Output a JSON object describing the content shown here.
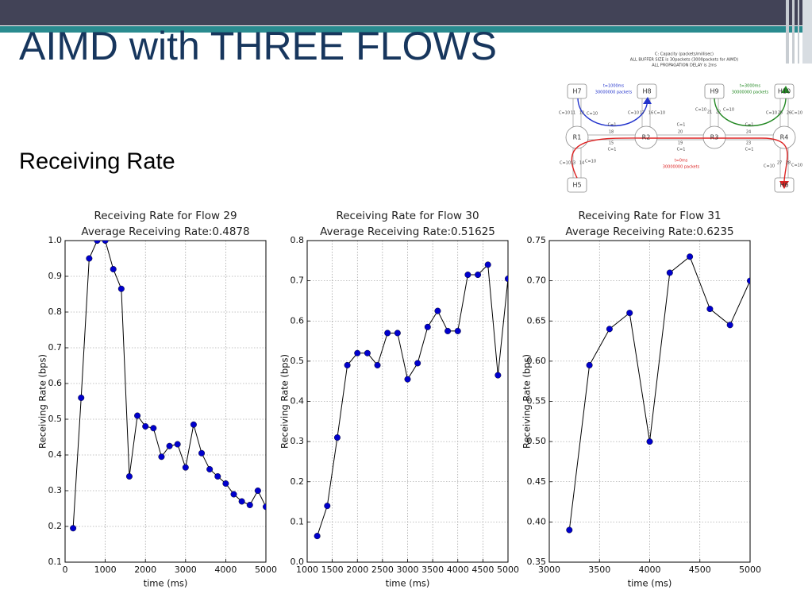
{
  "title": "AIMD with THREE FLOWS",
  "subtitle": "Receiving Rate",
  "diagram": {
    "header": [
      "C: Capacity (packets/millisec)",
      "ALL BUFFER SIZE is 30packets (3000packets for AIMD)",
      "ALL PROPAGATION DELAY is 2ms"
    ],
    "nodes": [
      "H7",
      "H8",
      "H9",
      "H10",
      "R1",
      "R2",
      "R3",
      "R4",
      "H5",
      "H6"
    ],
    "flows": [
      "t=1000ms",
      "30000000 packets",
      "t=3000ms",
      "30000000 packets",
      "t=0ms",
      "30000000 packets"
    ],
    "links": [
      "C=10",
      "11",
      "12",
      "C=10",
      "C=10",
      "17",
      "16",
      "C=10",
      "C=10",
      "21",
      "22",
      "C=10",
      "C=10",
      "25",
      "26",
      "C=10",
      "C=1",
      "18",
      "15",
      "C=1",
      "C=1",
      "20",
      "19",
      "C=1",
      "C=1",
      "24",
      "23",
      "C=1",
      "C=10",
      "13",
      "14",
      "C=10",
      "C=10",
      "27",
      "28",
      "C=10"
    ]
  },
  "chart_data": [
    {
      "type": "line",
      "title": "Receiving Rate for Flow 29",
      "subtitle": "Average Receiving Rate:0.4878",
      "x_label": "time (ms)",
      "y_label": "Receiving Rate (bps)",
      "x": [
        200,
        400,
        600,
        800,
        1000,
        1200,
        1400,
        1600,
        1800,
        2000,
        2200,
        2400,
        2600,
        2800,
        3000,
        3200,
        3400,
        3600,
        3800,
        4000,
        4200,
        4400,
        4600,
        4800,
        5000
      ],
      "values": [
        0.195,
        0.56,
        0.95,
        1.0,
        1.0,
        0.92,
        0.865,
        0.34,
        0.51,
        0.48,
        0.475,
        0.395,
        0.425,
        0.43,
        0.365,
        0.485,
        0.405,
        0.36,
        0.34,
        0.32,
        0.29,
        0.27,
        0.26,
        0.3,
        0.255
      ],
      "color": "#0000cc",
      "line_color": "#000000",
      "grid": true,
      "xlim": [
        0,
        5000
      ],
      "xticks": [
        0,
        1000,
        2000,
        3000,
        4000,
        5000
      ],
      "ylim": [
        0.1,
        1.0
      ],
      "yticks": [
        0.1,
        0.2,
        0.3,
        0.4,
        0.5,
        0.6,
        0.7,
        0.8,
        0.9,
        {
          "value": 1.0,
          "label": "1.0"
        }
      ]
    },
    {
      "type": "line",
      "title": "Receiving Rate for Flow 30",
      "subtitle": "Average Receiving Rate:0.51625",
      "x_label": "time (ms)",
      "y_label": "Receiving Rate (bps)",
      "x": [
        1200,
        1400,
        1600,
        1800,
        2000,
        2200,
        2400,
        2600,
        2800,
        3000,
        3200,
        3400,
        3600,
        3800,
        4000,
        4200,
        4400,
        4600,
        4800,
        5000
      ],
      "values": [
        0.065,
        0.14,
        0.31,
        0.49,
        0.52,
        0.52,
        0.49,
        0.57,
        0.57,
        0.455,
        0.495,
        0.585,
        0.625,
        0.575,
        0.575,
        0.715,
        0.715,
        0.74,
        0.465,
        0.705
      ],
      "color": "#0000cc",
      "line_color": "#000000",
      "grid": true,
      "xlim": [
        1000,
        5000
      ],
      "xticks": [
        1000,
        1500,
        2000,
        2500,
        3000,
        3500,
        4000,
        4500,
        5000
      ],
      "ylim": [
        0,
        0.8
      ],
      "yticks": [
        {
          "value": 0,
          "label": "0.0"
        },
        0.1,
        0.2,
        0.3,
        0.4,
        0.5,
        0.6,
        0.7,
        0.8
      ]
    },
    {
      "type": "line",
      "title": "Receiving Rate for Flow 31",
      "subtitle": "Average Receiving Rate:0.6235",
      "x_label": "time (ms)",
      "y_label": "Receiving Rate (bps)",
      "x": [
        3200,
        3400,
        3600,
        3800,
        4000,
        4200,
        4400,
        4600,
        4800,
        5000
      ],
      "values": [
        0.39,
        0.595,
        0.64,
        0.66,
        0.5,
        0.71,
        0.73,
        0.665,
        0.645,
        0.7
      ],
      "color": "#0000cc",
      "line_color": "#000000",
      "grid": true,
      "xlim": [
        3000,
        5000
      ],
      "xticks": [
        3000,
        3500,
        4000,
        4500,
        5000
      ],
      "ylim": [
        0.35,
        0.75
      ],
      "yticks": [
        0.35,
        {
          "value": 0.4,
          "label": "0.40"
        },
        0.45,
        {
          "value": 0.5,
          "label": "0.50"
        },
        0.55,
        {
          "value": 0.6,
          "label": "0.60"
        },
        0.65,
        {
          "value": 0.7,
          "label": "0.70"
        },
        0.75
      ]
    }
  ]
}
